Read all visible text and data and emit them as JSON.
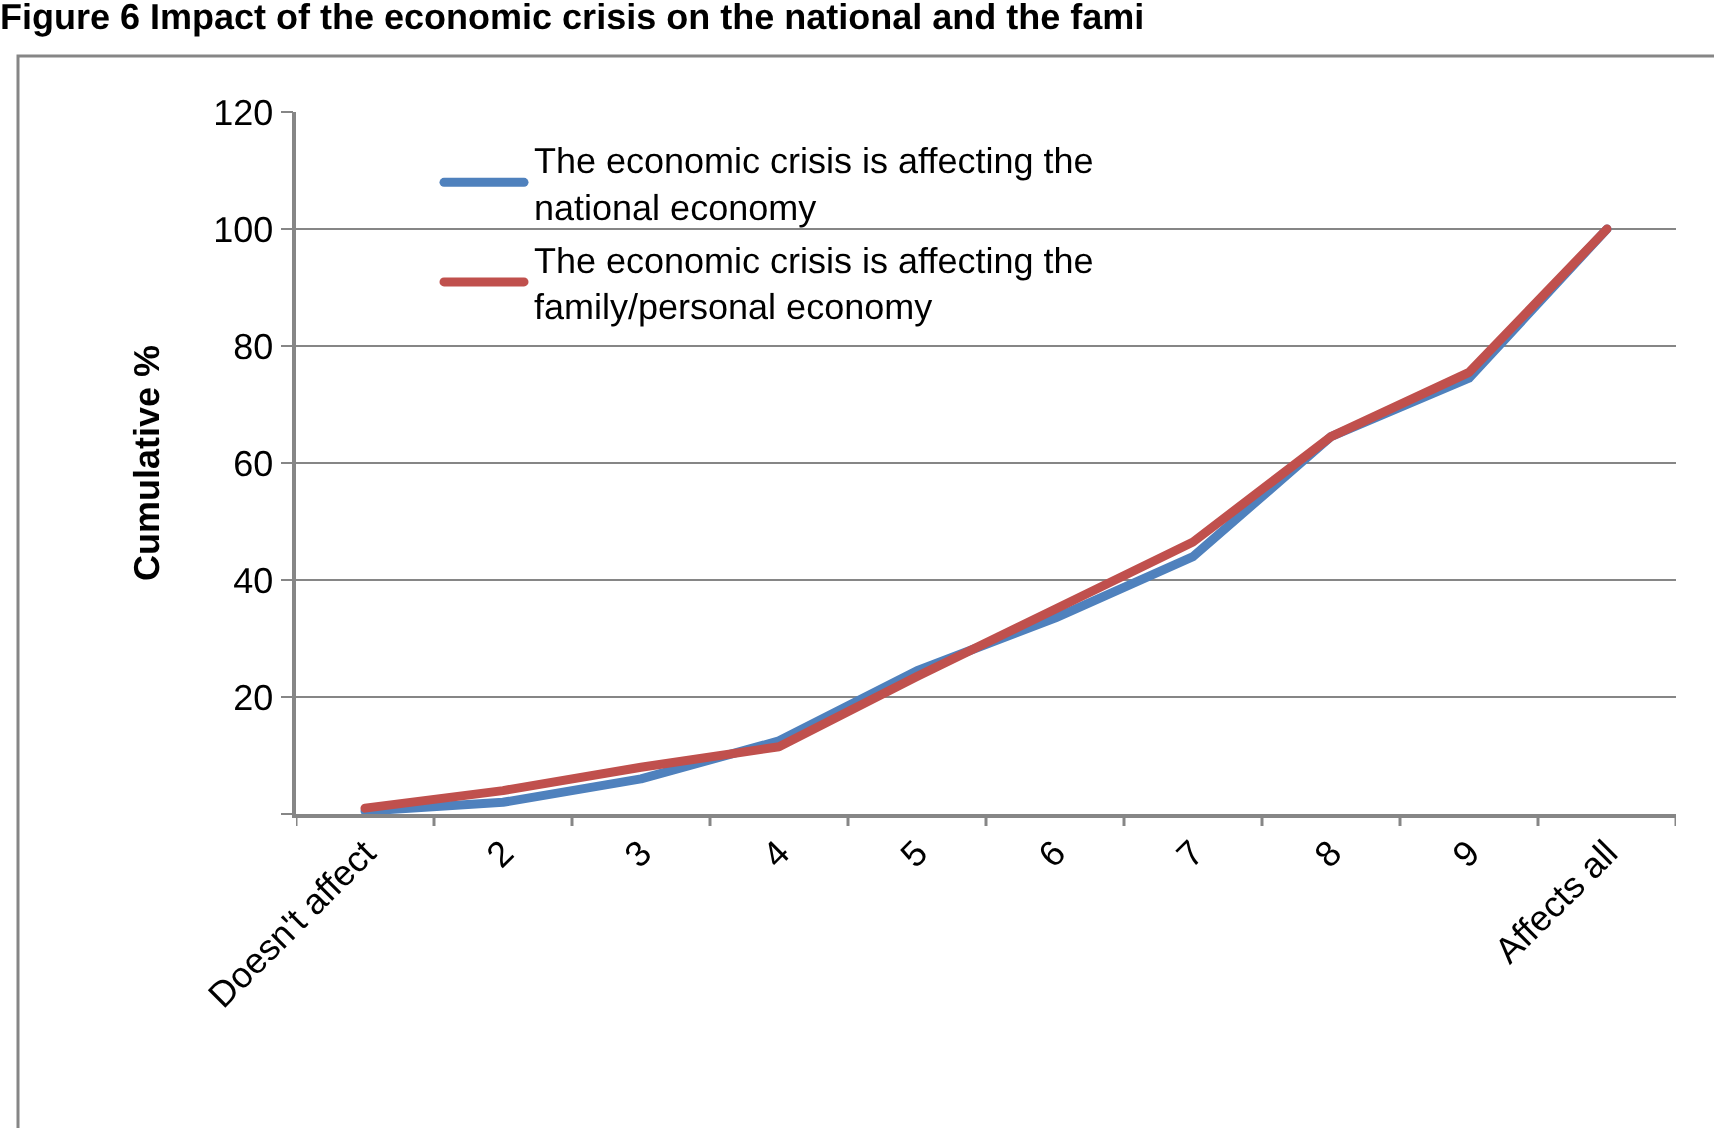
{
  "chart_data": {
    "type": "line",
    "title": "Figure 6 Impact of the economic crisis on the national and the fami",
    "ylabel": "Cumulative %",
    "categories": [
      "Doesn't affect",
      "2",
      "3",
      "4",
      "5",
      "6",
      "7",
      "8",
      "9",
      "Affects all"
    ],
    "series": [
      {
        "name": "The economic crisis is affecting the national economy",
        "color": "#4f81bd",
        "values": [
          0.5,
          2,
          6,
          12.5,
          24.5,
          33.5,
          44,
          64.5,
          74.5,
          100
        ]
      },
      {
        "name": "The economic crisis is affecting the family/personal economy",
        "color": "#c0504d",
        "values": [
          1,
          4,
          8,
          11.5,
          23.5,
          35,
          46.5,
          64.5,
          75.5,
          100
        ]
      }
    ],
    "ylim": [
      0,
      120
    ],
    "yticks": [
      {
        "value": 0,
        "label": null
      },
      20,
      40,
      60,
      80,
      100,
      120
    ],
    "grid": "y",
    "legend": "top left",
    "line_style": "solid"
  }
}
